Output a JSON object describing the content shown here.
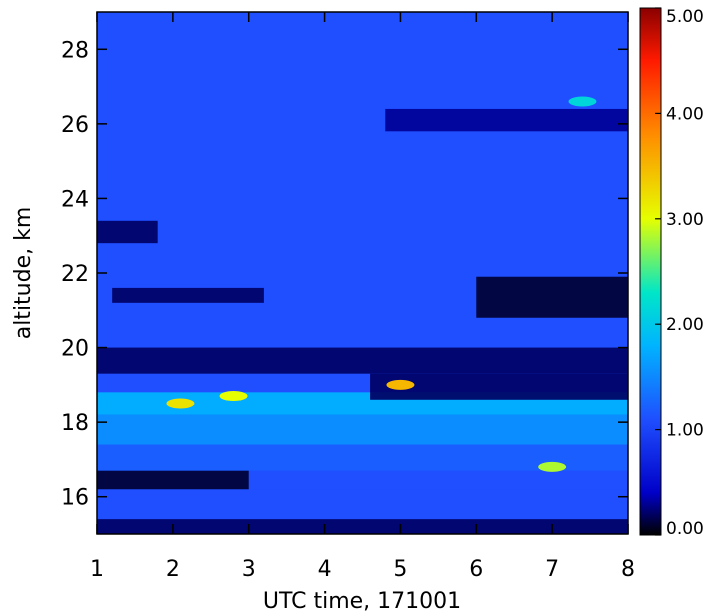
{
  "chart_data": {
    "type": "heatmap",
    "title": "",
    "xlabel": "UTC time, 171001",
    "ylabel": "altitude, km",
    "xlim": [
      1,
      8
    ],
    "ylim": [
      15,
      29
    ],
    "x_ticks": [
      "1",
      "2",
      "3",
      "4",
      "5",
      "6",
      "7",
      "8"
    ],
    "y_ticks": [
      "16",
      "18",
      "20",
      "22",
      "24",
      "26",
      "28"
    ],
    "colorbar": {
      "range": [
        0,
        5
      ],
      "tick_labels": [
        "5.00",
        "4.00",
        "3.00",
        "2.00",
        "1.00",
        "0.00"
      ],
      "colormap": "rainbow (black-blue-cyan-yellow-red-darkred)"
    },
    "colors": {
      "background_field": "#1f4fff",
      "low": "#000000",
      "high": "#8b0000"
    },
    "bands": [
      {
        "y": [
          15.0,
          15.4
        ],
        "x": [
          1,
          8
        ],
        "value": 0.2
      },
      {
        "y": [
          15.4,
          16.2
        ],
        "x": [
          1,
          8
        ],
        "value": 1.0
      },
      {
        "y": [
          16.2,
          16.7
        ],
        "x": [
          1,
          3
        ],
        "value": 0.1
      },
      {
        "y": [
          16.7,
          17.4
        ],
        "x": [
          1,
          8
        ],
        "value": 1.1
      },
      {
        "y": [
          17.4,
          18.2
        ],
        "x": [
          1,
          8
        ],
        "value": 1.4
      },
      {
        "y": [
          18.2,
          18.8
        ],
        "x": [
          1,
          8
        ],
        "value": 1.6
      },
      {
        "y": [
          18.6,
          19.3
        ],
        "x": [
          4.6,
          8
        ],
        "value": 0.2
      },
      {
        "y": [
          19.3,
          20.0
        ],
        "x": [
          1,
          8
        ],
        "value": 0.2
      },
      {
        "y": [
          20.8,
          21.9
        ],
        "x": [
          6.0,
          8
        ],
        "value": 0.1
      },
      {
        "y": [
          21.2,
          21.6
        ],
        "x": [
          1.2,
          3.2
        ],
        "value": 0.2
      },
      {
        "y": [
          22.8,
          23.4
        ],
        "x": [
          1,
          1.8
        ],
        "value": 0.2
      },
      {
        "y": [
          25.8,
          26.4
        ],
        "x": [
          4.8,
          8
        ],
        "value": 0.3
      }
    ],
    "hotspots": [
      {
        "x": 5.0,
        "y": 19.0,
        "value": 3.5
      },
      {
        "x": 7.0,
        "y": 16.8,
        "value": 2.8
      },
      {
        "x": 2.1,
        "y": 18.5,
        "value": 3.2
      },
      {
        "x": 2.8,
        "y": 18.7,
        "value": 3.0
      },
      {
        "x": 7.4,
        "y": 26.6,
        "value": 2.0
      }
    ]
  }
}
